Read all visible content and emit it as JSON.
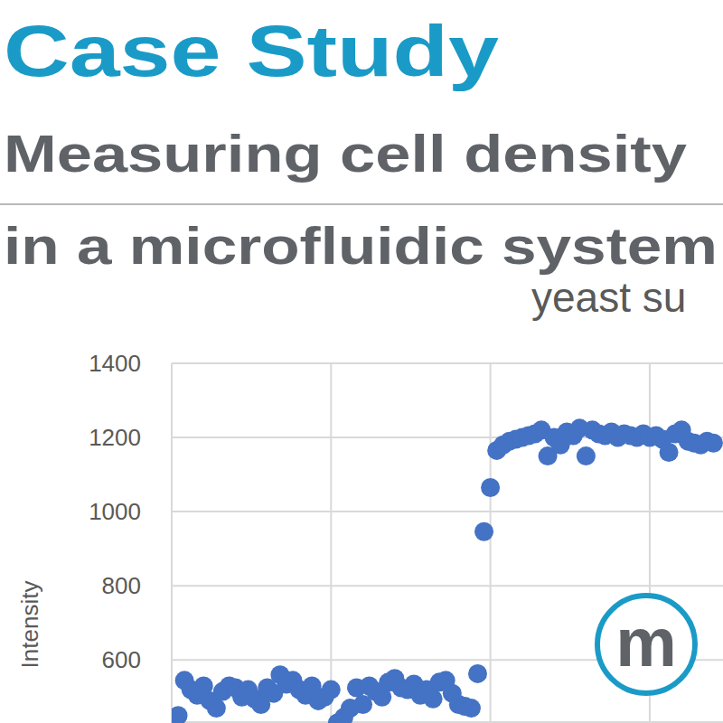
{
  "header": {
    "title": "Case Study",
    "subtitle": [
      "Measuring cell density",
      "in a microfluidic system"
    ]
  },
  "logo": {
    "text": "m"
  },
  "chart_data": {
    "type": "scatter",
    "title": "yeast su",
    "y_label": "Intensity",
    "x": [
      2,
      4,
      6,
      8,
      10,
      12,
      14,
      16,
      18,
      20,
      22,
      24,
      26,
      28,
      30,
      32,
      34,
      36,
      38,
      40,
      42,
      44,
      46,
      48,
      50,
      52,
      54,
      56,
      58,
      60,
      62,
      64,
      66,
      68,
      70,
      72,
      74,
      76,
      78,
      80,
      82,
      84,
      86,
      88,
      90,
      92,
      94,
      96,
      98,
      100,
      102,
      104,
      106,
      108,
      110,
      112,
      114,
      116,
      118,
      120,
      122,
      124,
      126,
      128,
      130,
      132,
      134,
      136,
      138,
      140,
      142,
      144,
      146,
      148,
      150,
      152,
      154,
      156,
      158,
      160,
      162,
      164,
      166,
      168,
      170
    ],
    "values": [
      450,
      545,
      520,
      505,
      530,
      490,
      470,
      515,
      530,
      525,
      500,
      520,
      495,
      480,
      525,
      510,
      560,
      535,
      545,
      520,
      505,
      530,
      490,
      500,
      520,
      430,
      445,
      470,
      525,
      480,
      530,
      515,
      500,
      540,
      550,
      525,
      520,
      535,
      505,
      520,
      495,
      540,
      545,
      510,
      480,
      475,
      470,
      563,
      946,
      1065,
      1165,
      1180,
      1190,
      1195,
      1200,
      1205,
      1210,
      1220,
      1150,
      1200,
      1180,
      1215,
      1205,
      1225,
      1150,
      1220,
      1210,
      1205,
      1215,
      1200,
      1210,
      1205,
      1200,
      1210,
      1200,
      1205,
      1195,
      1160,
      1210,
      1220,
      1190,
      1185,
      1180,
      1190,
      1185
    ],
    "color": "#4472c4",
    "marker": "circle",
    "xlim": [
      0,
      173
    ],
    "xticks": [
      0,
      50,
      100,
      150
    ],
    "ylim": [
      430,
      1400
    ],
    "yticks": [
      600,
      800,
      1000,
      1200,
      1400
    ],
    "grid": true,
    "tick_labels": "y"
  }
}
